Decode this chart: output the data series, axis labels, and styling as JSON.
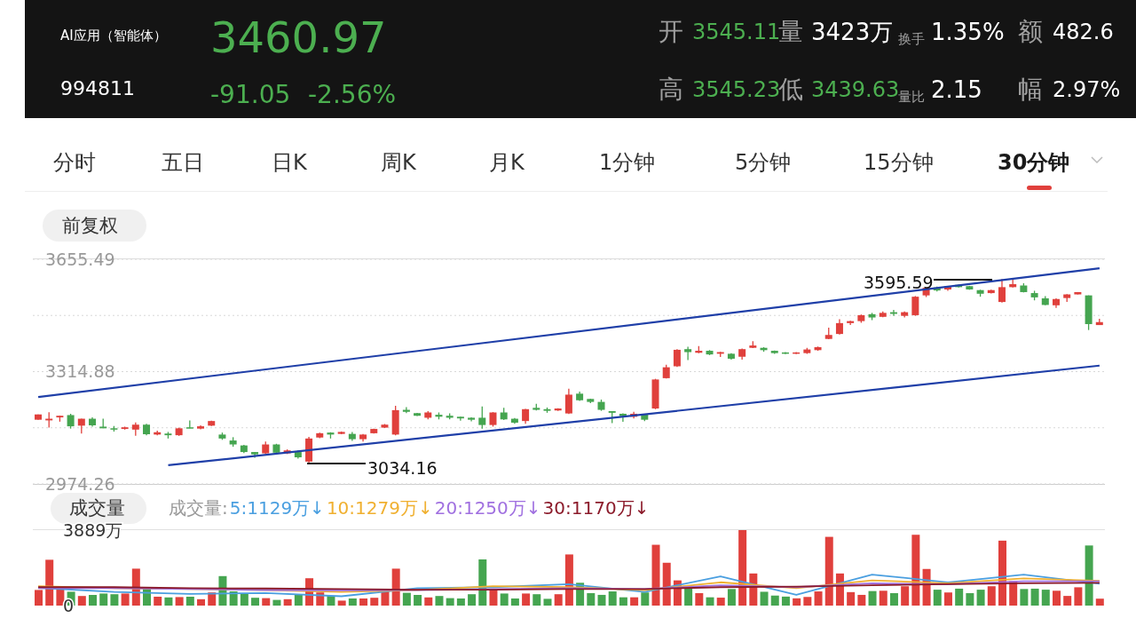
{
  "chart_data": [
    {
      "type": "candlestick",
      "title": "AI应用（智能体）",
      "subtitle": "994811",
      "annotations": [
        "3460.97",
        "-91.05",
        "-2.56%",
        "开",
        "3545.11",
        "量",
        "3423万",
        "换手",
        "1.35%",
        "额",
        "482.6",
        "高",
        "3545.23",
        "低",
        "3439.63",
        "量比",
        "2.15",
        "幅",
        "2.97%",
        "分时",
        "五日",
        "日K",
        "周K",
        "月K",
        "1分钟",
        "5分钟",
        "15分钟",
        "30分钟",
        "前复权",
        "3595.59",
        "3034.16"
      ],
      "categories": [
        null,
        null,
        null,
        null,
        null,
        null,
        null,
        null,
        null,
        null,
        null,
        null,
        null,
        null,
        null,
        null,
        null,
        null,
        null,
        null,
        null,
        null,
        null,
        null,
        null,
        null,
        null,
        null,
        null,
        null,
        null,
        null,
        null,
        null,
        null,
        null,
        null,
        null,
        null,
        null,
        null,
        null,
        null,
        null,
        null,
        null,
        null,
        null,
        null,
        null,
        null,
        null,
        null,
        null,
        null,
        null,
        null,
        null,
        null,
        null,
        null,
        null,
        null,
        null,
        null,
        null,
        null,
        null,
        null,
        null,
        null,
        null,
        null,
        null,
        null,
        null,
        null,
        null,
        null,
        null,
        null,
        null,
        null,
        null,
        null,
        null,
        null,
        null,
        null,
        null,
        null,
        null,
        null,
        null,
        null,
        null,
        null,
        null,
        null
      ],
      "colors": [
        "#e0403c",
        "#e0403c",
        "#e0403c",
        "#45a550",
        "#e0403c",
        "#45a550",
        "#45a550",
        "#45a550",
        "#e0403c",
        "#e0403c",
        "#45a550",
        "#e0403c",
        "#45a550",
        "#e0403c",
        "#45a550",
        "#e0403c",
        "#e0403c",
        "#45a550",
        "#45a550",
        "#45a550",
        "#45a550",
        "#e0403c",
        "#45a550",
        "#e0403c",
        "#45a550",
        "#e0403c",
        "#e0403c",
        "#45a550",
        "#e0403c",
        "#45a550",
        "#e0403c",
        "#e0403c",
        "#e0403c",
        "#e0403c",
        "#45a550",
        "#45a550",
        "#e0403c",
        "#45a550",
        "#45a550",
        "#45a550",
        "#45a550",
        "#45a550",
        "#e0403c",
        "#45a550",
        "#45a550",
        "#e0403c",
        "#45a550",
        "#45a550",
        "#e0403c",
        "#e0403c",
        "#45a550",
        "#45a550",
        "#45a550",
        "#45a550",
        "#45a550",
        "#e0403c",
        "#45a550",
        "#e0403c",
        "#e0403c",
        "#e0403c",
        "#45a550",
        "#e0403c",
        "#45a550",
        "#e0403c",
        "#45a550",
        "#e0403c",
        "#e0403c",
        "#45a550",
        "#45a550",
        "#45a550",
        "#e0403c",
        "#e0403c",
        "#e0403c",
        "#e0403c",
        "#e0403c",
        "#e0403c",
        "#e0403c",
        "#45a550",
        "#e0403c",
        "#45a550",
        "#e0403c",
        "#e0403c",
        "#e0403c",
        "#45a550",
        "#e0403c",
        "#45a550",
        "#45a550",
        "#45a550",
        "#e0403c",
        "#e0403c",
        "#e0403c",
        "#45a550",
        "#45a550",
        "#45a550",
        "#e0403c",
        "#e0403c",
        "#e0403c",
        "#45a550",
        "#e0403c"
      ],
      "ohlc": [
        [
          3169,
          3185,
          3169,
          3185
        ],
        [
          3167,
          3192,
          3145,
          3172
        ],
        [
          3176,
          3181,
          3163,
          3181
        ],
        [
          3183,
          3187,
          3142,
          3149
        ],
        [
          3151,
          3172,
          3127,
          3172
        ],
        [
          3172,
          3176,
          3148,
          3152
        ],
        [
          3148,
          3172,
          3143,
          3143
        ],
        [
          3143,
          3150,
          3133,
          3139
        ],
        [
          3141,
          3148,
          3139,
          3146
        ],
        [
          3139,
          3161,
          3120,
          3154
        ],
        [
          3154,
          3157,
          3122,
          3125
        ],
        [
          3124,
          3136,
          3122,
          3131
        ],
        [
          3127,
          3132,
          3112,
          3122
        ],
        [
          3122,
          3145,
          3120,
          3143
        ],
        [
          3146,
          3167,
          3143,
          3143
        ],
        [
          3142,
          3152,
          3140,
          3149
        ],
        [
          3151,
          3166,
          3150,
          3165
        ],
        [
          3124,
          3130,
          3108,
          3112
        ],
        [
          3106,
          3116,
          3087,
          3094
        ],
        [
          3091,
          3093,
          3068,
          3071
        ],
        [
          3071,
          3071,
          3054,
          3064
        ],
        [
          3067,
          3103,
          3065,
          3094
        ],
        [
          3094,
          3096,
          3067,
          3069
        ],
        [
          3067,
          3079,
          3065,
          3076
        ],
        [
          3071,
          3076,
          3051,
          3055
        ],
        [
          3042,
          3117,
          3034.16,
          3112
        ],
        [
          3115,
          3130,
          3113,
          3128
        ],
        [
          3130,
          3131,
          3112,
          3124
        ],
        [
          3126,
          3133,
          3125,
          3132
        ],
        [
          3126,
          3132,
          3105,
          3110
        ],
        [
          3110,
          3126,
          3103,
          3124
        ],
        [
          3128,
          3142,
          3127,
          3141
        ],
        [
          3145,
          3156,
          3144,
          3154
        ],
        [
          3124,
          3211,
          3122,
          3198
        ],
        [
          3199,
          3207,
          3189,
          3193
        ],
        [
          3189,
          3190,
          3180,
          3181
        ],
        [
          3175,
          3195,
          3170,
          3191
        ],
        [
          3184,
          3191,
          3170,
          3178
        ],
        [
          3181,
          3188,
          3170,
          3175
        ],
        [
          3178,
          3178,
          3166,
          3173
        ],
        [
          3175,
          3176,
          3164,
          3169
        ],
        [
          3175,
          3209,
          3142,
          3153
        ],
        [
          3153,
          3192,
          3148,
          3191
        ],
        [
          3191,
          3205,
          3168,
          3170
        ],
        [
          3172,
          3174,
          3157,
          3160
        ],
        [
          3165,
          3202,
          3157,
          3201
        ],
        [
          3205,
          3217,
          3197,
          3199
        ],
        [
          3201,
          3206,
          3190,
          3196
        ],
        [
          3197,
          3204,
          3196,
          3203
        ],
        [
          3188,
          3263,
          3186,
          3245
        ],
        [
          3248,
          3254,
          3226,
          3228
        ],
        [
          3232,
          3233,
          3219,
          3223
        ],
        [
          3223,
          3230,
          3196,
          3199
        ],
        [
          3195,
          3195,
          3159,
          3190
        ],
        [
          3187,
          3188,
          3163,
          3180
        ],
        [
          3178,
          3193,
          3173,
          3187
        ],
        [
          3185,
          3187,
          3165,
          3169
        ],
        [
          3203,
          3293,
          3201,
          3291
        ],
        [
          3295,
          3336,
          3294,
          3328
        ],
        [
          3331,
          3383,
          3329,
          3381
        ],
        [
          3383,
          3390,
          3350,
          3374
        ],
        [
          3372,
          3392,
          3371,
          3378
        ],
        [
          3378,
          3380,
          3365,
          3367
        ],
        [
          3369,
          3375,
          3359,
          3374
        ],
        [
          3369,
          3371,
          3351,
          3354
        ],
        [
          3360,
          3385,
          3351,
          3383
        ],
        [
          3387,
          3407,
          3386,
          3394
        ],
        [
          3387,
          3389,
          3375,
          3380
        ],
        [
          3378,
          3379,
          3369,
          3371
        ],
        [
          3373,
          3374,
          3368,
          3369
        ],
        [
          3369,
          3374,
          3368,
          3373
        ],
        [
          3371,
          3387,
          3369,
          3382
        ],
        [
          3380,
          3391,
          3378,
          3389
        ],
        [
          3414,
          3448,
          3413,
          3426
        ],
        [
          3429,
          3474,
          3427,
          3462
        ],
        [
          3462,
          3469,
          3456,
          3468
        ],
        [
          3468,
          3488,
          3463,
          3486
        ],
        [
          3489,
          3493,
          3471,
          3479
        ],
        [
          3481,
          3497,
          3480,
          3493
        ],
        [
          3495,
          3502,
          3484,
          3490
        ],
        [
          3484,
          3497,
          3479,
          3495
        ],
        [
          3486,
          3544,
          3484,
          3542
        ],
        [
          3546,
          3570,
          3541,
          3569
        ],
        [
          3570,
          3573,
          3558,
          3561
        ],
        [
          3564,
          3575,
          3560,
          3574
        ],
        [
          3578,
          3579,
          3570,
          3571
        ],
        [
          3574,
          3575,
          3563,
          3564
        ],
        [
          3562,
          3563,
          3542,
          3551
        ],
        [
          3553,
          3563,
          3552,
          3562
        ],
        [
          3526,
          3595.59,
          3524,
          3571
        ],
        [
          3571,
          3594,
          3570,
          3580
        ],
        [
          3576,
          3583,
          3555,
          3556
        ],
        [
          3553,
          3560,
          3531,
          3540
        ],
        [
          3537,
          3544,
          3516,
          3517
        ],
        [
          3516,
          3537,
          3508,
          3535
        ],
        [
          3538,
          3550,
          3526,
          3549
        ],
        [
          3549,
          3556,
          3549,
          3556
        ],
        [
          3546,
          3546,
          3441,
          3459
        ],
        [
          3456,
          3475,
          3456,
          3465
        ]
      ],
      "series": [
        {
          "type": "line",
          "color": "#1f3fa8",
          "values": [
            3238,
            null,
            null,
            null,
            null,
            null,
            null,
            null,
            null,
            null,
            null,
            null,
            null,
            null,
            null,
            null,
            null,
            null,
            null,
            null,
            null,
            null,
            null,
            null,
            null,
            null,
            null,
            null,
            null,
            null,
            null,
            null,
            null,
            null,
            null,
            null,
            null,
            null,
            null,
            null,
            null,
            null,
            null,
            null,
            null,
            null,
            null,
            null,
            null,
            null,
            null,
            null,
            null,
            null,
            null,
            null,
            null,
            null,
            null,
            null,
            null,
            null,
            null,
            null,
            null,
            null,
            null,
            null,
            null,
            null,
            null,
            null,
            null,
            null,
            null,
            null,
            null,
            null,
            null,
            null,
            null,
            null,
            null,
            null,
            null,
            null,
            null,
            null,
            null,
            null,
            null,
            null,
            null,
            null,
            null,
            null,
            null,
            null,
            3628
          ]
        },
        {
          "type": "line",
          "color": "#1f3fa8",
          "values": [
            null,
            null,
            null,
            null,
            null,
            null,
            null,
            null,
            null,
            null,
            null,
            null,
            3031,
            null,
            null,
            null,
            null,
            null,
            null,
            null,
            null,
            null,
            null,
            null,
            null,
            null,
            null,
            null,
            null,
            null,
            null,
            null,
            null,
            null,
            null,
            null,
            null,
            null,
            null,
            null,
            null,
            null,
            null,
            null,
            null,
            null,
            null,
            null,
            null,
            null,
            null,
            null,
            null,
            null,
            null,
            null,
            null,
            null,
            null,
            null,
            null,
            null,
            null,
            null,
            null,
            null,
            null,
            null,
            null,
            null,
            null,
            null,
            null,
            null,
            null,
            null,
            null,
            null,
            null,
            null,
            null,
            null,
            null,
            null,
            null,
            null,
            null,
            null,
            null,
            null,
            null,
            null,
            null,
            null,
            null,
            null,
            null,
            null,
            3333
          ]
        }
      ],
      "ylim": [
        2974.26,
        3655.49
      ],
      "yticks": [
        3655.49,
        {
          "value": 3485.19,
          "label": null
        },
        3314.88,
        {
          "value": 3144.57,
          "label": null
        },
        2974.26
      ],
      "grid": "y",
      "tick_labels": "y"
    },
    {
      "type": "bar",
      "title": "成交量",
      "legend_title": "成交量:",
      "legend": "top left",
      "categories": [
        null,
        null,
        null,
        null,
        null,
        null,
        null,
        null,
        null,
        null,
        null,
        null,
        null,
        null,
        null,
        null,
        null,
        null,
        null,
        null,
        null,
        null,
        null,
        null,
        null,
        null,
        null,
        null,
        null,
        null,
        null,
        null,
        null,
        null,
        null,
        null,
        null,
        null,
        null,
        null,
        null,
        null,
        null,
        null,
        null,
        null,
        null,
        null,
        null,
        null,
        null,
        null,
        null,
        null,
        null,
        null,
        null,
        null,
        null,
        null,
        null,
        null,
        null,
        null,
        null,
        null,
        null,
        null,
        null,
        null,
        null,
        null,
        null,
        null,
        null,
        null,
        null,
        null,
        null,
        null,
        null,
        null,
        null,
        null,
        null,
        null,
        null,
        null,
        null,
        null,
        null,
        null,
        null,
        null,
        null,
        null,
        null,
        null,
        null
      ],
      "values": [
        805,
        2361,
        988,
        714,
        494,
        549,
        622,
        586,
        622,
        1903,
        897,
        458,
        421,
        439,
        458,
        329,
        677,
        1519,
        732,
        622,
        403,
        384,
        293,
        329,
        586,
        1409,
        677,
        512,
        256,
        366,
        366,
        403,
        805,
        1903,
        659,
        549,
        421,
        494,
        384,
        366,
        586,
        2379,
        860,
        622,
        366,
        622,
        586,
        348,
        586,
        2635,
        1175,
        641,
        552,
        730,
        427,
        427,
        676,
        3133,
        2207,
        1299,
        943,
        641,
        427,
        409,
        854,
        3889,
        1655,
        712,
        516,
        463,
        374,
        445,
        730,
        3542,
        1655,
        694,
        552,
        748,
        765,
        641,
        997,
        3649,
        1887,
        819,
        676,
        872,
        641,
        819,
        997,
        3346,
        1264,
        854,
        872,
        819,
        765,
        498,
        943,
        3097,
        356
      ],
      "colors": [
        "#e0403c",
        "#e0403c",
        "#e0403c",
        "#45a550",
        "#e0403c",
        "#45a550",
        "#45a550",
        "#45a550",
        "#e0403c",
        "#e0403c",
        "#45a550",
        "#e0403c",
        "#45a550",
        "#e0403c",
        "#45a550",
        "#e0403c",
        "#e0403c",
        "#45a550",
        "#45a550",
        "#45a550",
        "#45a550",
        "#e0403c",
        "#45a550",
        "#e0403c",
        "#45a550",
        "#e0403c",
        "#e0403c",
        "#45a550",
        "#e0403c",
        "#45a550",
        "#e0403c",
        "#e0403c",
        "#e0403c",
        "#e0403c",
        "#45a550",
        "#45a550",
        "#e0403c",
        "#45a550",
        "#45a550",
        "#45a550",
        "#45a550",
        "#45a550",
        "#e0403c",
        "#45a550",
        "#45a550",
        "#e0403c",
        "#45a550",
        "#45a550",
        "#e0403c",
        "#e0403c",
        "#45a550",
        "#45a550",
        "#45a550",
        "#45a550",
        "#45a550",
        "#e0403c",
        "#45a550",
        "#e0403c",
        "#e0403c",
        "#e0403c",
        "#45a550",
        "#e0403c",
        "#45a550",
        "#e0403c",
        "#45a550",
        "#e0403c",
        "#e0403c",
        "#45a550",
        "#45a550",
        "#45a550",
        "#e0403c",
        "#e0403c",
        "#e0403c",
        "#e0403c",
        "#e0403c",
        "#e0403c",
        "#e0403c",
        "#45a550",
        "#e0403c",
        "#45a550",
        "#e0403c",
        "#e0403c",
        "#e0403c",
        "#45a550",
        "#e0403c",
        "#45a550",
        "#45a550",
        "#45a550",
        "#e0403c",
        "#e0403c",
        "#e0403c",
        "#45a550",
        "#45a550",
        "#45a550",
        "#e0403c",
        "#e0403c",
        "#e0403c",
        "#45a550",
        "#e0403c"
      ],
      "series": [
        {
          "type": "line",
          "name": "5:1129万↓",
          "color": "#4a9fe0",
          "values": [
            915,
            null,
            null,
            null,
            null,
            null,
            null,
            700,
            null,
            null,
            null,
            null,
            null,
            null,
            600,
            null,
            null,
            null,
            null,
            null,
            null,
            650,
            null,
            null,
            null,
            null,
            null,
            null,
            480,
            null,
            null,
            null,
            null,
            null,
            null,
            900,
            null,
            null,
            null,
            null,
            null,
            null,
            950,
            null,
            null,
            null,
            null,
            null,
            null,
            1100,
            null,
            null,
            null,
            null,
            null,
            null,
            700,
            null,
            null,
            null,
            null,
            null,
            null,
            1500,
            null,
            null,
            null,
            null,
            null,
            null,
            550,
            null,
            null,
            null,
            null,
            null,
            null,
            1600,
            null,
            null,
            null,
            null,
            null,
            null,
            1200,
            null,
            null,
            null,
            null,
            null,
            null,
            1600,
            null,
            null,
            null,
            null,
            null,
            null,
            1129
          ]
        },
        {
          "type": "line",
          "name": "10:1279万↓",
          "color": "#f0b030",
          "values": [
            1000,
            null,
            null,
            null,
            null,
            null,
            null,
            900,
            null,
            null,
            null,
            null,
            null,
            null,
            850,
            null,
            null,
            null,
            null,
            null,
            null,
            800,
            null,
            null,
            null,
            null,
            null,
            null,
            700,
            null,
            null,
            null,
            null,
            null,
            null,
            800,
            null,
            null,
            null,
            null,
            null,
            null,
            1000,
            null,
            null,
            null,
            null,
            null,
            null,
            950,
            null,
            null,
            null,
            null,
            null,
            null,
            800,
            null,
            null,
            null,
            null,
            null,
            null,
            1200,
            null,
            null,
            null,
            null,
            null,
            null,
            900,
            null,
            null,
            null,
            null,
            null,
            null,
            1300,
            null,
            null,
            null,
            null,
            null,
            null,
            1150,
            null,
            null,
            null,
            null,
            null,
            null,
            1400,
            null,
            null,
            null,
            null,
            null,
            null,
            1279
          ]
        },
        {
          "type": "line",
          "name": "20:1250万↓",
          "color": "#a070e0",
          "values": [
            900,
            null,
            null,
            null,
            null,
            null,
            null,
            900,
            null,
            null,
            null,
            null,
            null,
            null,
            850,
            null,
            null,
            null,
            null,
            null,
            null,
            800,
            null,
            null,
            null,
            null,
            null,
            null,
            780,
            null,
            null,
            null,
            null,
            null,
            null,
            800,
            null,
            null,
            null,
            null,
            null,
            null,
            850,
            null,
            null,
            null,
            null,
            null,
            null,
            900,
            null,
            null,
            null,
            null,
            null,
            null,
            850,
            null,
            null,
            null,
            null,
            null,
            null,
            1050,
            null,
            null,
            null,
            null,
            null,
            null,
            950,
            null,
            null,
            null,
            null,
            null,
            null,
            1150,
            null,
            null,
            null,
            null,
            null,
            null,
            1100,
            null,
            null,
            null,
            null,
            null,
            null,
            1250,
            null,
            null,
            null,
            null,
            null,
            null,
            1250
          ]
        },
        {
          "type": "line",
          "name": "30:1170万↓",
          "color": "#8b1a2a",
          "values": [
            950,
            null,
            null,
            null,
            null,
            null,
            null,
            950,
            null,
            null,
            null,
            null,
            null,
            null,
            900,
            null,
            null,
            null,
            null,
            null,
            null,
            880,
            null,
            null,
            null,
            null,
            null,
            null,
            850,
            null,
            null,
            null,
            null,
            null,
            null,
            820,
            null,
            null,
            null,
            null,
            null,
            null,
            820,
            null,
            null,
            null,
            null,
            null,
            null,
            850,
            null,
            null,
            null,
            null,
            null,
            null,
            850,
            null,
            null,
            null,
            null,
            null,
            null,
            950,
            null,
            null,
            null,
            null,
            null,
            null,
            980,
            null,
            null,
            null,
            null,
            null,
            null,
            1050,
            null,
            null,
            null,
            null,
            null,
            null,
            1100,
            null,
            null,
            null,
            null,
            null,
            null,
            1150,
            null,
            null,
            null,
            null,
            null,
            null,
            1170
          ]
        }
      ],
      "ylim": [
        0,
        3889
      ],
      "yticks": [
        {
          "value": 3889,
          "label": "3889万"
        },
        0
      ],
      "tick_labels": "y"
    }
  ]
}
